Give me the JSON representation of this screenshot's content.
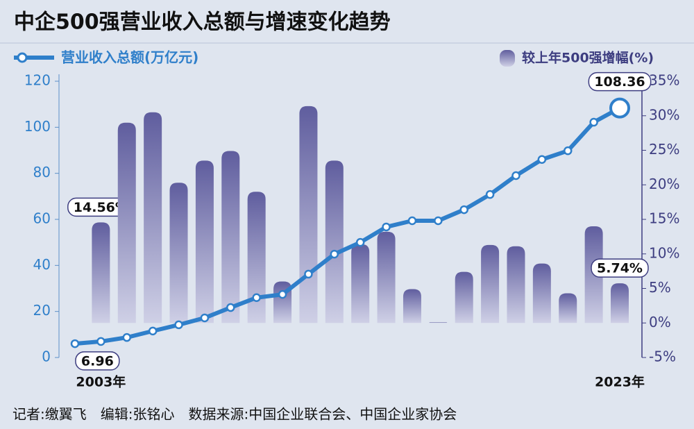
{
  "chart_data": {
    "type": "bar_line",
    "title": "中企500强营业收入总额与增速变化趋势",
    "source": "记者:缴翼飞　编辑:张铭心　数据来源:中国企业联合会、中国企业家协会",
    "categories": [
      null,
      "2003年",
      null,
      null,
      null,
      null,
      null,
      null,
      null,
      null,
      null,
      null,
      null,
      null,
      null,
      null,
      null,
      null,
      null,
      null,
      null,
      "2023年"
    ],
    "series": [
      {
        "name": "营业收入总额(万亿元)",
        "type": "line",
        "color": "#2f7fca",
        "values": [
          6.0,
          6.96,
          8.7,
          11.5,
          14.2,
          17.2,
          21.7,
          26.0,
          27.4,
          36.2,
          44.9,
          50.0,
          56.7,
          59.4,
          59.4,
          64.2,
          70.8,
          79.0,
          86.0,
          89.8,
          102.2,
          108.36
        ],
        "value_labels": [
          null,
          "6.96",
          null,
          null,
          null,
          null,
          null,
          null,
          null,
          null,
          null,
          null,
          null,
          null,
          null,
          null,
          null,
          null,
          null,
          null,
          null,
          "108.36"
        ]
      },
      {
        "name": "较上年500强增幅(%)",
        "type": "bar",
        "axis": "y2",
        "color": "#6260a0",
        "values": [
          null,
          14.56,
          29.0,
          30.5,
          20.3,
          23.5,
          24.9,
          19.0,
          6.0,
          31.4,
          23.5,
          11.4,
          13.2,
          4.9,
          0.1,
          7.4,
          11.3,
          11.1,
          8.6,
          4.3,
          14.0,
          5.74
        ],
        "value_labels": [
          null,
          "14.56%",
          null,
          null,
          null,
          null,
          null,
          null,
          null,
          null,
          null,
          null,
          null,
          null,
          null,
          null,
          null,
          null,
          null,
          null,
          null,
          "5.74%"
        ]
      }
    ],
    "ylim": [
      0,
      120
    ],
    "yticks": [
      0,
      20,
      40,
      60,
      80,
      100,
      120
    ],
    "y2lim": [
      -5,
      35
    ],
    "y2ticks": [
      {
        "value": -5,
        "label": "-5%"
      },
      {
        "value": 0,
        "label": "0%"
      },
      {
        "value": 5,
        "label": "5%"
      },
      {
        "value": 10,
        "label": "10%"
      },
      {
        "value": 15,
        "label": "15%"
      },
      {
        "value": 20,
        "label": "20%"
      },
      {
        "value": 25,
        "label": "25%"
      },
      {
        "value": 30,
        "label": "30%"
      },
      {
        "value": 35,
        "label": "35%"
      }
    ]
  }
}
